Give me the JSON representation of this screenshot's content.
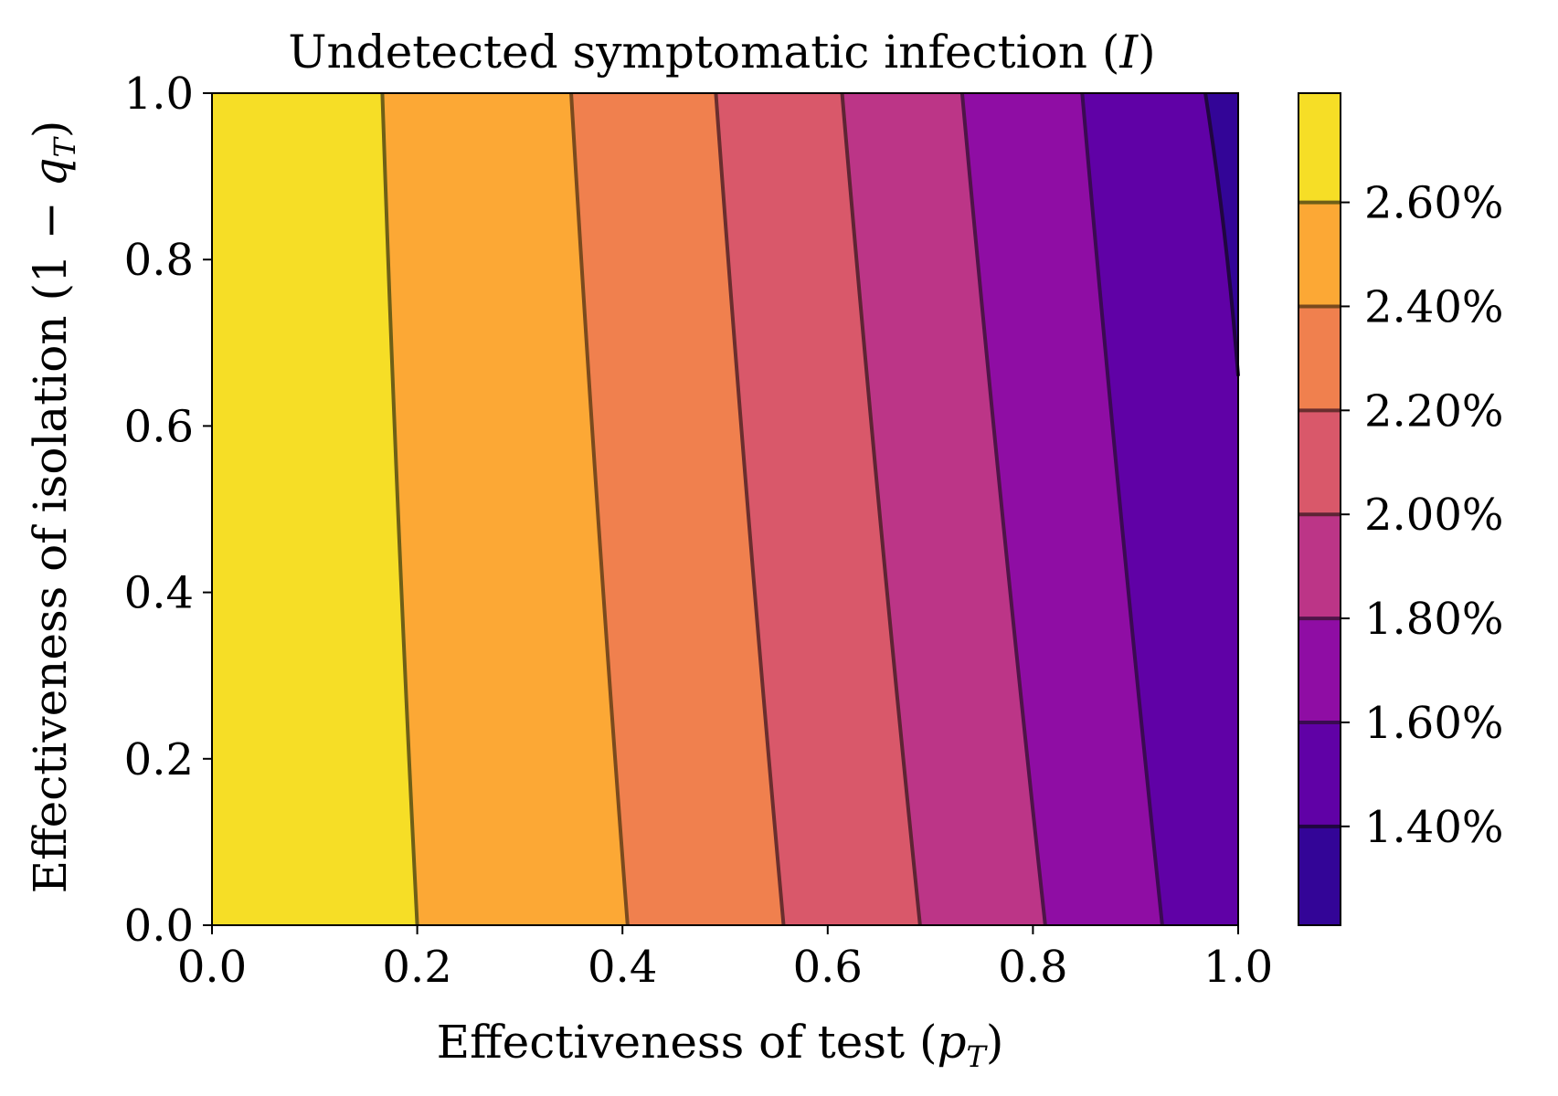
{
  "chart_data": {
    "type": "contourf",
    "title_main": "Undetected symptomatic infection (",
    "title_var": "I",
    "title_end": ")",
    "xlabel_main": "Effectiveness of test (",
    "xlabel_var": "p",
    "xlabel_sub": "T",
    "xlabel_end": ")",
    "ylabel_main": "Effectiveness of isolation (1 − ",
    "ylabel_var": "q",
    "ylabel_sub": "T",
    "ylabel_end": ")",
    "xlim": [
      0,
      1
    ],
    "ylim": [
      0,
      1
    ],
    "x_ticks": [
      0.0,
      0.2,
      0.4,
      0.6,
      0.8,
      1.0
    ],
    "x_tick_labels": [
      "0.0",
      "0.2",
      "0.4",
      "0.6",
      "0.8",
      "1.0"
    ],
    "y_ticks": [
      0.0,
      0.2,
      0.4,
      0.6,
      0.8,
      1.0
    ],
    "y_tick_labels": [
      "0.0",
      "0.2",
      "0.4",
      "0.6",
      "0.8",
      "1.0"
    ],
    "colormap": "plasma",
    "colorbar": {
      "range": [
        1.21,
        2.81
      ],
      "levels": [
        1.4,
        1.6,
        1.8,
        2.0,
        2.2,
        2.4,
        2.6
      ],
      "tick_labels": [
        "1.40%",
        "1.60%",
        "1.80%",
        "2.00%",
        "2.20%",
        "2.40%",
        "2.60%"
      ],
      "band_colors": [
        "#330597",
        "#6001a6",
        "#8f0da4",
        "#bc3587",
        "#d9586a",
        "#f0804e",
        "#fca835",
        "#f6de26"
      ]
    },
    "contours": [
      {
        "level": 2.6,
        "x_at_y0": 0.2,
        "x_at_y1": 0.166,
        "color": "#6e5f17"
      },
      {
        "level": 2.4,
        "x_at_y0": 0.405,
        "x_at_y1": 0.35,
        "color": "#7a4a1e"
      },
      {
        "level": 2.2,
        "x_at_y0": 0.557,
        "x_at_y1": 0.491,
        "color": "#6a2e2e"
      },
      {
        "level": 2.0,
        "x_at_y0": 0.69,
        "x_at_y1": 0.614,
        "color": "#5e2434"
      },
      {
        "level": 1.8,
        "x_at_y0": 0.812,
        "x_at_y1": 0.731,
        "color": "#4e1448"
      },
      {
        "level": 1.6,
        "x_at_y0": 0.926,
        "x_at_y1": 0.848,
        "color": "#3a0a52"
      },
      {
        "level": 1.4,
        "x_at_y_min": 1.0,
        "y_min": 0.66,
        "x_at_y1": 0.968,
        "color": "#200640"
      }
    ]
  }
}
